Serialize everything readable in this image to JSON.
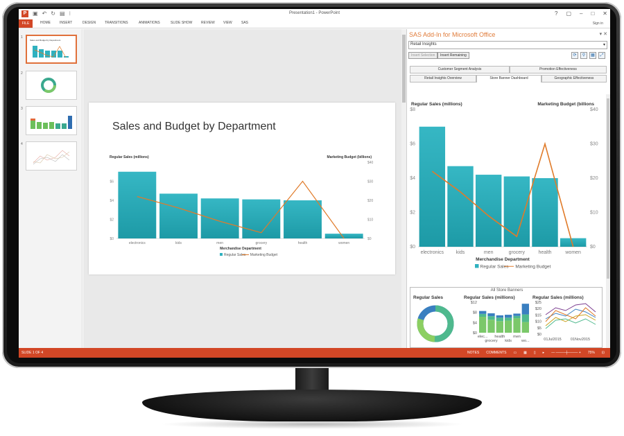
{
  "window": {
    "title": "Presentation1 - PowerPoint",
    "sign_in": "Sign in"
  },
  "ribbon": {
    "file": "FILE",
    "tabs": [
      "HOME",
      "INSERT",
      "DESIGN",
      "TRANSITIONS",
      "ANIMATIONS",
      "SLIDE SHOW",
      "REVIEW",
      "VIEW",
      "SAS"
    ]
  },
  "thumbnails": [
    {
      "number": "1",
      "title": "Sales and Budget by Department",
      "active": true
    },
    {
      "number": "2",
      "active": false
    },
    {
      "number": "3",
      "active": false
    },
    {
      "number": "4",
      "active": false
    }
  ],
  "slide": {
    "title": "Sales and Budget by Department",
    "chart_data": {
      "type": "bar",
      "categories": [
        "electronics",
        "kids",
        "men",
        "grocery",
        "health",
        "women"
      ],
      "series": [
        {
          "name": "Regular Sales",
          "values": [
            7.0,
            4.7,
            4.2,
            4.1,
            4.0,
            0.5
          ],
          "color": "#2fb1bf"
        },
        {
          "name": "Marketing Budget",
          "values": [
            22,
            16,
            9,
            3,
            30,
            0
          ],
          "color": "#e07b2a"
        }
      ],
      "ylabel": "Regular Sales (millions)",
      "y2label": "Marketing Budget (billions)",
      "xlabel": "Merchandise Department",
      "ylim": [
        0,
        8
      ],
      "y2lim": [
        0,
        40
      ],
      "yticks": [
        "$0",
        "$2",
        "$4",
        "$6"
      ],
      "y2ticks": [
        "$0",
        "$10",
        "$20",
        "$30",
        "$40"
      ]
    }
  },
  "sas_pane": {
    "title": "SAS Add-In for Microsoft Office",
    "select_value": "Retail Insights",
    "buttons": {
      "insert_selection": "Insert Selection",
      "insert_remaining": "Insert Remaining"
    },
    "tabs_row1": [
      "Customer Segment Analysis",
      "Promotion Effectiveness"
    ],
    "tabs_row2": [
      "Retail Insights Overview",
      "Store Banner Dashboard",
      "Geographic Effectiveness"
    ],
    "chart_data": {
      "type": "bar",
      "categories": [
        "electronics",
        "kids",
        "men",
        "grocery",
        "health",
        "women"
      ],
      "series": [
        {
          "name": "Regular Sales",
          "values": [
            7.0,
            4.7,
            4.2,
            4.1,
            4.0,
            0.5
          ],
          "color": "#2fb1bf"
        },
        {
          "name": "Marketing Budget",
          "values": [
            22,
            16,
            9,
            3,
            30,
            0
          ],
          "color": "#e07b2a"
        }
      ],
      "ylabel": "Regular Sales (millions)",
      "y2label": "Marketing Budget (billions",
      "xlabel": "Merchandise Department",
      "ylim": [
        0,
        8
      ],
      "y2lim": [
        0,
        40
      ],
      "yticks": [
        "$0",
        "$2",
        "$4",
        "$6",
        "$8"
      ],
      "y2ticks": [
        "$0",
        "$10",
        "$20",
        "$30",
        "$40"
      ]
    },
    "banners": {
      "title": "All Store Banners",
      "donut_title": "Regular Sales",
      "stacked_title": "Regular Sales (millions)",
      "stacked_yticks": [
        "$0",
        "$4",
        "$8",
        "$12"
      ],
      "stacked_xlabels": [
        "elec...",
        "grocery",
        "health",
        "kids",
        "men",
        "wo..."
      ],
      "line_title": "Regular Sales (millions)",
      "line_yticks": [
        "$0",
        "$5",
        "$10",
        "$15",
        "$20",
        "$25"
      ],
      "line_xlabels": [
        "01Jul2015",
        "01Nov2015"
      ]
    }
  },
  "status": {
    "slide": "SLIDE 1 OF 4",
    "notes": "NOTES",
    "comments": "COMMENTS",
    "zoom": "75%"
  }
}
